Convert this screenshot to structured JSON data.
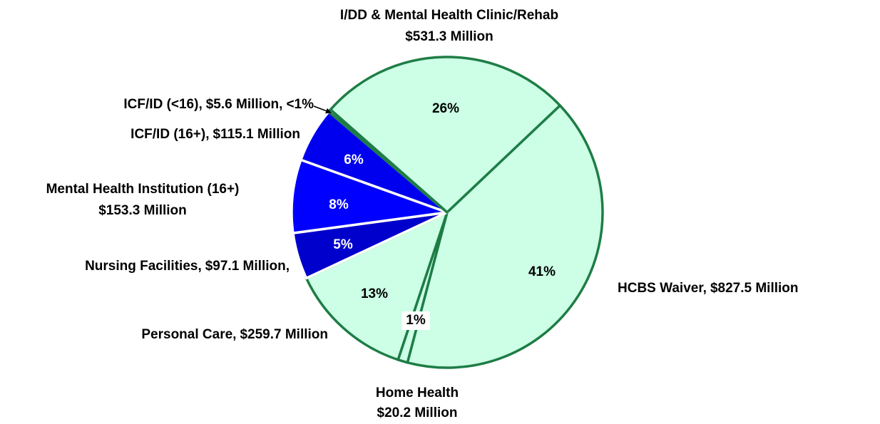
{
  "chart_data": {
    "type": "pie",
    "categories": [
      "I/DD & Mental Health Clinic/Rehab",
      "HCBS Waiver,",
      "Home Health",
      "Personal Care,",
      "Nursing Facilities,",
      "Mental Health Institution (16+)",
      "ICF/ID (16+),",
      "ICF/ID (<16),"
    ],
    "values": [
      531.3,
      827.5,
      20.2,
      259.7,
      97.1,
      153.3,
      115.1,
      5.6
    ],
    "value_labels": [
      "$531.3 Million",
      "$827.5 Million",
      "$20.2 Million",
      "$259.7 Million",
      "$97.1 Million,",
      "$153.3 Million",
      "$115.1 Million",
      "$5.6 Million,"
    ],
    "percent_labels": [
      "26%",
      "41%",
      "1%",
      "13%",
      "5%",
      "8%",
      "6%",
      "<1%"
    ],
    "colors": [
      "#ccffe6",
      "#ccffe6",
      "#ccffe6",
      "#ccffe6",
      "#0000cc",
      "#0000ff",
      "#0000ee",
      "#ccffe6"
    ],
    "edge_colors": [
      "#1e7d45",
      "#1e7d45",
      "#1e7d45",
      "#1e7d45",
      "#ffffff",
      "#ffffff",
      "#ffffff",
      "#1e7d45"
    ]
  }
}
